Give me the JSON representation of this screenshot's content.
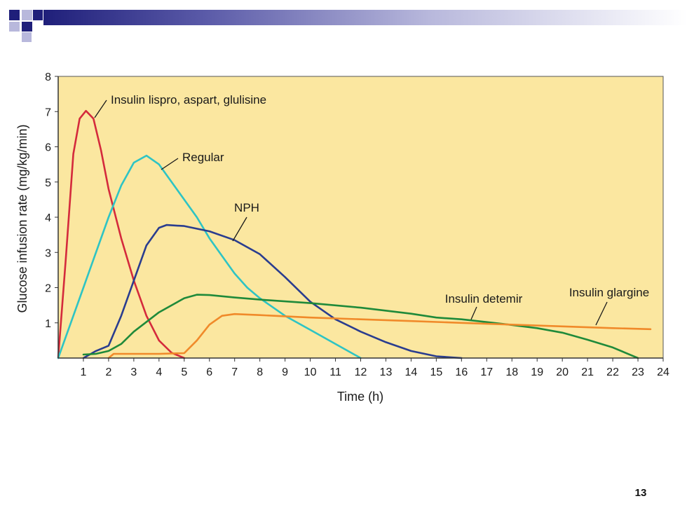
{
  "slide": {
    "number": "13",
    "colors": {
      "header_dark": "#1f1f7a",
      "header_light": "#b8b8dc",
      "plot_bg": "#fbe7a0"
    }
  },
  "chart_data": {
    "type": "line",
    "title": "",
    "xlabel": "Time (h)",
    "ylabel": "Glucose infusion rate (mg/kg/min)",
    "xlim": [
      0,
      24
    ],
    "ylim": [
      0,
      8
    ],
    "xticks": [
      "1",
      "2",
      "3",
      "4",
      "5",
      "6",
      "7",
      "8",
      "9",
      "10",
      "11",
      "12",
      "13",
      "14",
      "15",
      "16",
      "17",
      "18",
      "19",
      "20",
      "21",
      "22",
      "23",
      "24"
    ],
    "yticks": [
      "1",
      "2",
      "3",
      "4",
      "5",
      "6",
      "7",
      "8"
    ],
    "grid": false,
    "series": [
      {
        "name": "Insulin lispro, aspart, glulisine",
        "color": "#d42a3c",
        "x": [
          0,
          0.3,
          0.6,
          0.85,
          1.1,
          1.4,
          1.7,
          2.0,
          2.5,
          3.0,
          3.5,
          4.0,
          4.5,
          5.0
        ],
        "y": [
          0,
          2.8,
          5.8,
          6.8,
          7.02,
          6.8,
          5.9,
          4.8,
          3.4,
          2.2,
          1.2,
          0.5,
          0.15,
          0
        ]
      },
      {
        "name": "Regular",
        "color": "#2ec4c4",
        "x": [
          0,
          0.5,
          1.0,
          1.5,
          2.0,
          2.5,
          3.0,
          3.5,
          4.0,
          4.5,
          5.0,
          5.5,
          6.0,
          6.5,
          7.0,
          7.5,
          8.0,
          9.0,
          10.0,
          11.0,
          12.0
        ],
        "y": [
          0,
          1.0,
          2.0,
          3.0,
          4.0,
          4.9,
          5.55,
          5.75,
          5.5,
          5.0,
          4.5,
          4.0,
          3.4,
          2.9,
          2.4,
          2.0,
          1.7,
          1.2,
          0.8,
          0.4,
          0
        ]
      },
      {
        "name": "NPH",
        "color": "#2a3d8f",
        "x": [
          1.0,
          1.5,
          2.0,
          2.5,
          3.0,
          3.5,
          4.0,
          4.3,
          5.0,
          6.0,
          7.0,
          8.0,
          9.0,
          10.0,
          11.0,
          12.0,
          13.0,
          14.0,
          15.0,
          16.0
        ],
        "y": [
          0,
          0.2,
          0.35,
          1.2,
          2.2,
          3.2,
          3.7,
          3.78,
          3.75,
          3.6,
          3.35,
          2.95,
          2.3,
          1.6,
          1.1,
          0.75,
          0.45,
          0.2,
          0.05,
          0
        ]
      },
      {
        "name": "Insulin detemir",
        "color": "#1f8a3a",
        "x": [
          1.0,
          1.5,
          2.0,
          2.5,
          3.0,
          4.0,
          5.0,
          5.5,
          6.0,
          7.0,
          8.0,
          10.0,
          12.0,
          14.0,
          15.0,
          16.0,
          17.0,
          18.0,
          19.0,
          20.0,
          21.0,
          22.0,
          23.0
        ],
        "y": [
          0.1,
          0.12,
          0.2,
          0.4,
          0.75,
          1.3,
          1.7,
          1.8,
          1.79,
          1.72,
          1.66,
          1.56,
          1.43,
          1.26,
          1.15,
          1.1,
          1.02,
          0.94,
          0.85,
          0.72,
          0.52,
          0.3,
          0
        ]
      },
      {
        "name": "Insulin glargine",
        "color": "#f08a2a",
        "x": [
          2.0,
          2.2,
          3.0,
          4.0,
          5.0,
          5.5,
          6.0,
          6.5,
          7.0,
          8.0,
          10.0,
          12.0,
          14.0,
          16.0,
          18.0,
          20.0,
          22.0,
          23.5
        ],
        "y": [
          0,
          0.12,
          0.12,
          0.12,
          0.14,
          0.5,
          0.95,
          1.2,
          1.25,
          1.22,
          1.15,
          1.1,
          1.05,
          1.0,
          0.95,
          0.9,
          0.85,
          0.82
        ]
      }
    ],
    "annotations": [
      {
        "text": "Insulin lispro, aspart, glulisine",
        "series": 0
      },
      {
        "text": "Regular",
        "series": 1
      },
      {
        "text": "NPH",
        "series": 2
      },
      {
        "text": "Insulin detemir",
        "series": 3
      },
      {
        "text": "Insulin glargine",
        "series": 4
      }
    ]
  }
}
